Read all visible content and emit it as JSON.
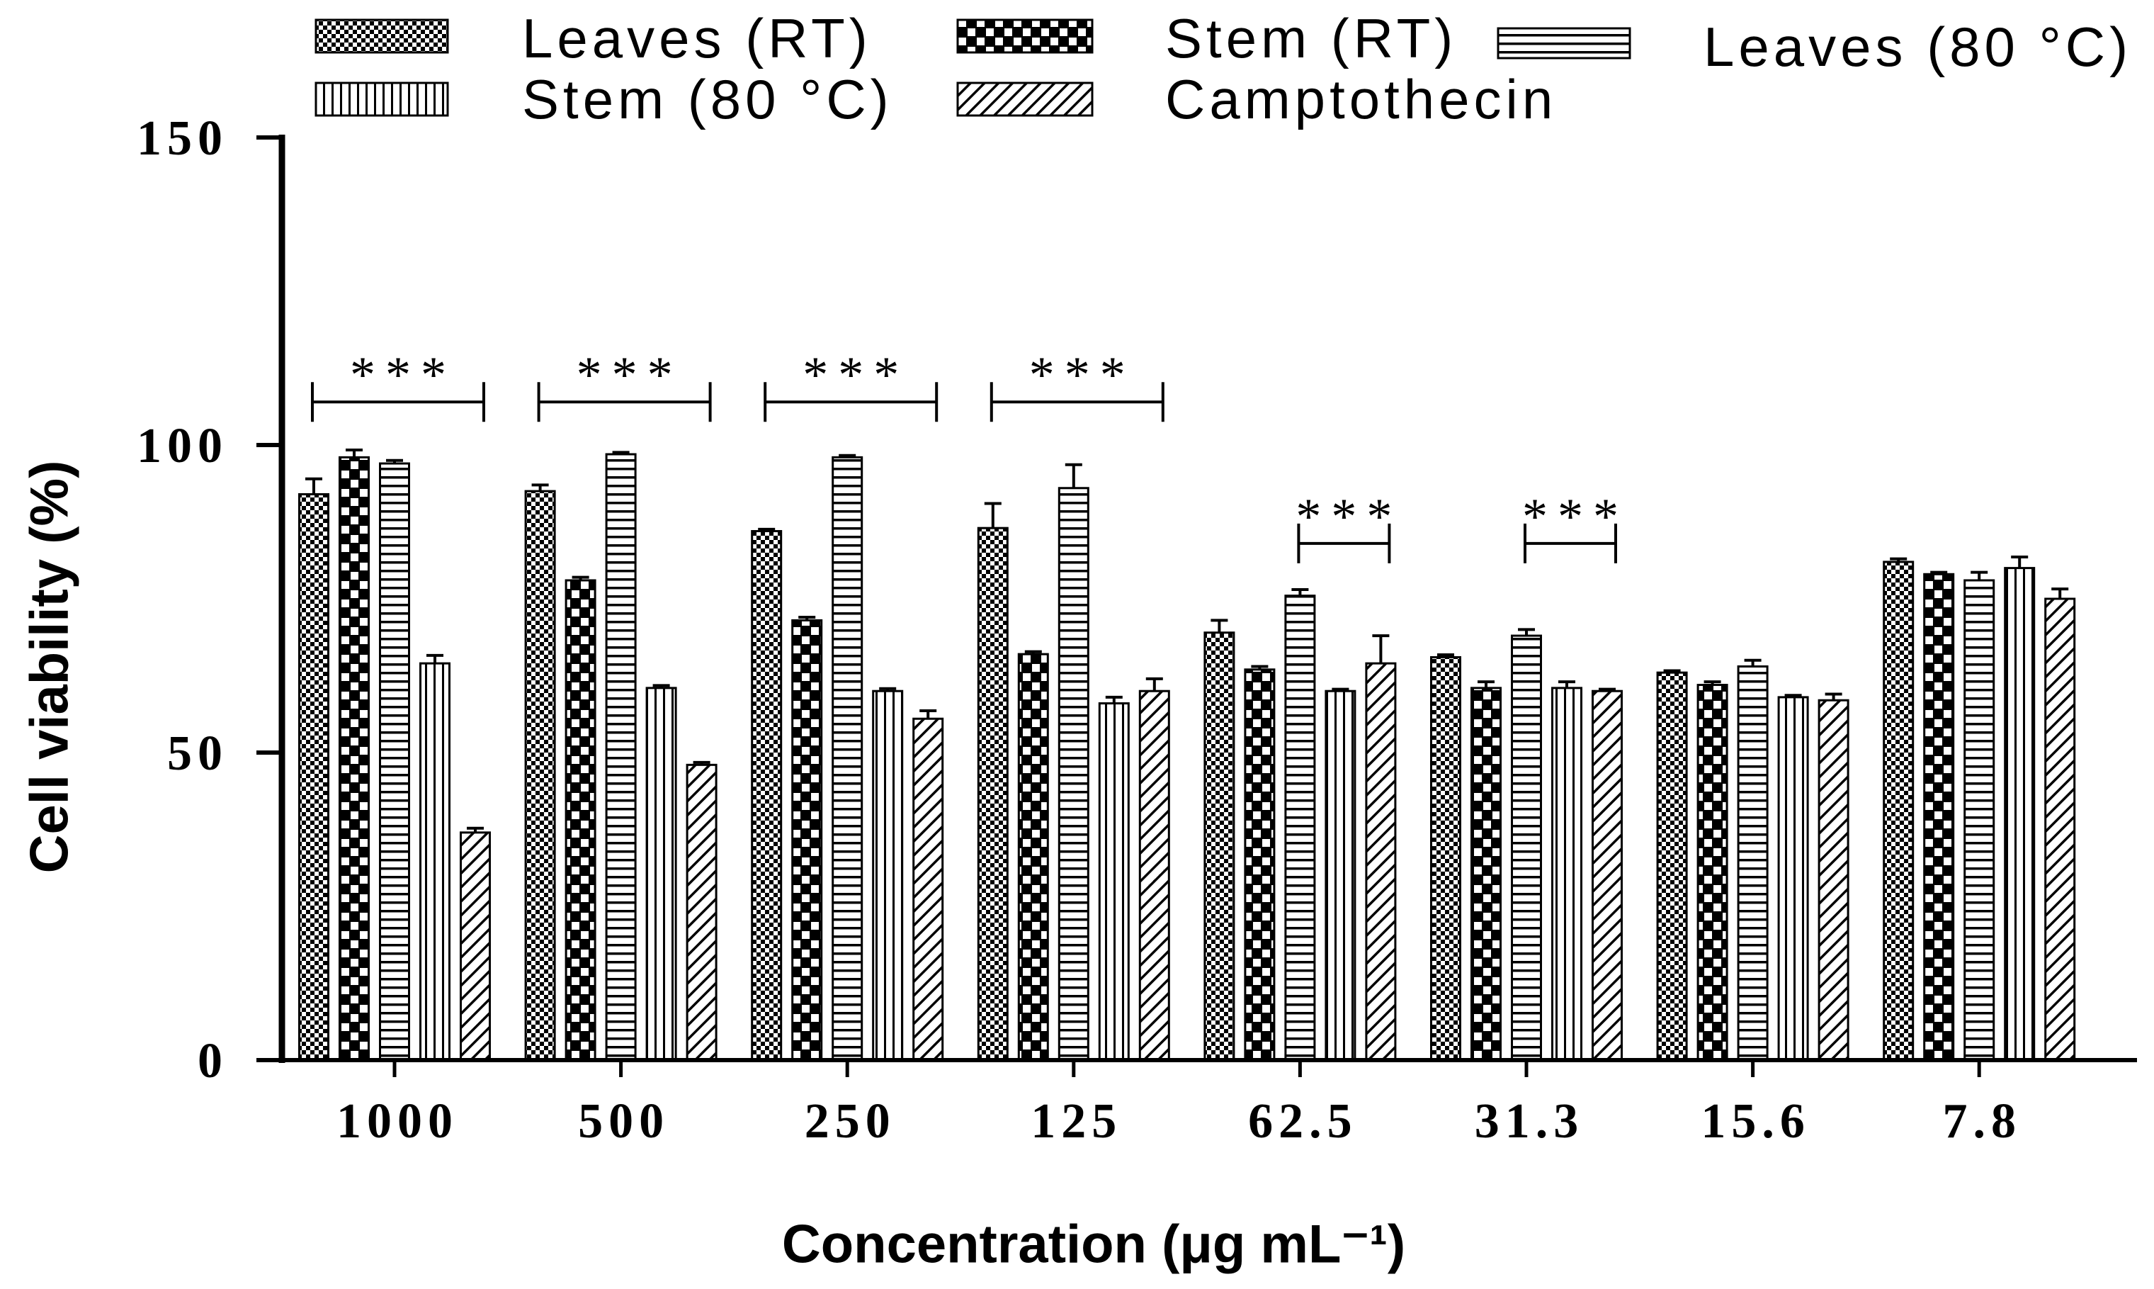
{
  "chart_data": {
    "type": "bar",
    "title": "",
    "xlabel": "Concentration (μg mL⁻¹)",
    "ylabel": "Cell viability (%)",
    "ylim": [
      0,
      150
    ],
    "yticks": [
      0,
      50,
      100,
      150
    ],
    "grid": false,
    "legend": "top",
    "categories": [
      "1000",
      "500",
      "250",
      "125",
      "62.5",
      "31.3",
      "15.6",
      "7.8"
    ],
    "series": [
      {
        "name": "Leaves (RT)",
        "values": [
          92,
          92.5,
          86,
          86.5,
          69.5,
          65.5,
          63,
          81
        ],
        "errors": [
          2.5,
          1,
          0.3,
          4,
          2,
          0.4,
          0.3,
          0.5
        ]
      },
      {
        "name": "Stem (RT)",
        "values": [
          98,
          78,
          71.5,
          66,
          63.5,
          60.5,
          61,
          79
        ],
        "errors": [
          1.2,
          0.5,
          0.5,
          0.4,
          0.5,
          1,
          0.5,
          0.3
        ]
      },
      {
        "name": "Leaves (80 °C)",
        "values": [
          97,
          98.5,
          98,
          93,
          75.5,
          69,
          64,
          78
        ],
        "errors": [
          0.5,
          0.3,
          0.3,
          3.8,
          1,
          1,
          1,
          1.3
        ]
      },
      {
        "name": "Stem (80 °C)",
        "values": [
          64.5,
          60.5,
          60,
          58,
          60,
          60.5,
          59,
          80
        ],
        "errors": [
          1.3,
          0.4,
          0.4,
          1,
          0.3,
          1,
          0.3,
          1.8
        ]
      },
      {
        "name": "Camptothecin",
        "values": [
          37,
          48,
          55.5,
          60,
          64.5,
          60,
          58.5,
          75
        ],
        "errors": [
          0.7,
          0.4,
          1.3,
          2,
          4.5,
          0.3,
          1,
          1.6
        ]
      }
    ],
    "annotations": [
      {
        "text": "***",
        "category": "1000",
        "from_series": 0,
        "to_series": 4,
        "y": 107
      },
      {
        "text": "***",
        "category": "500",
        "from_series": 0,
        "to_series": 4,
        "y": 107
      },
      {
        "text": "***",
        "category": "250",
        "from_series": 0,
        "to_series": 4,
        "y": 107
      },
      {
        "text": "***",
        "category": "125",
        "from_series": 0,
        "to_series": 4,
        "y": 107
      },
      {
        "text": "***",
        "category": "62.5",
        "from_series": 2,
        "to_series": 4,
        "y": 84
      },
      {
        "text": "***",
        "category": "31.3",
        "from_series": 2,
        "to_series": 4,
        "y": 84
      }
    ]
  }
}
